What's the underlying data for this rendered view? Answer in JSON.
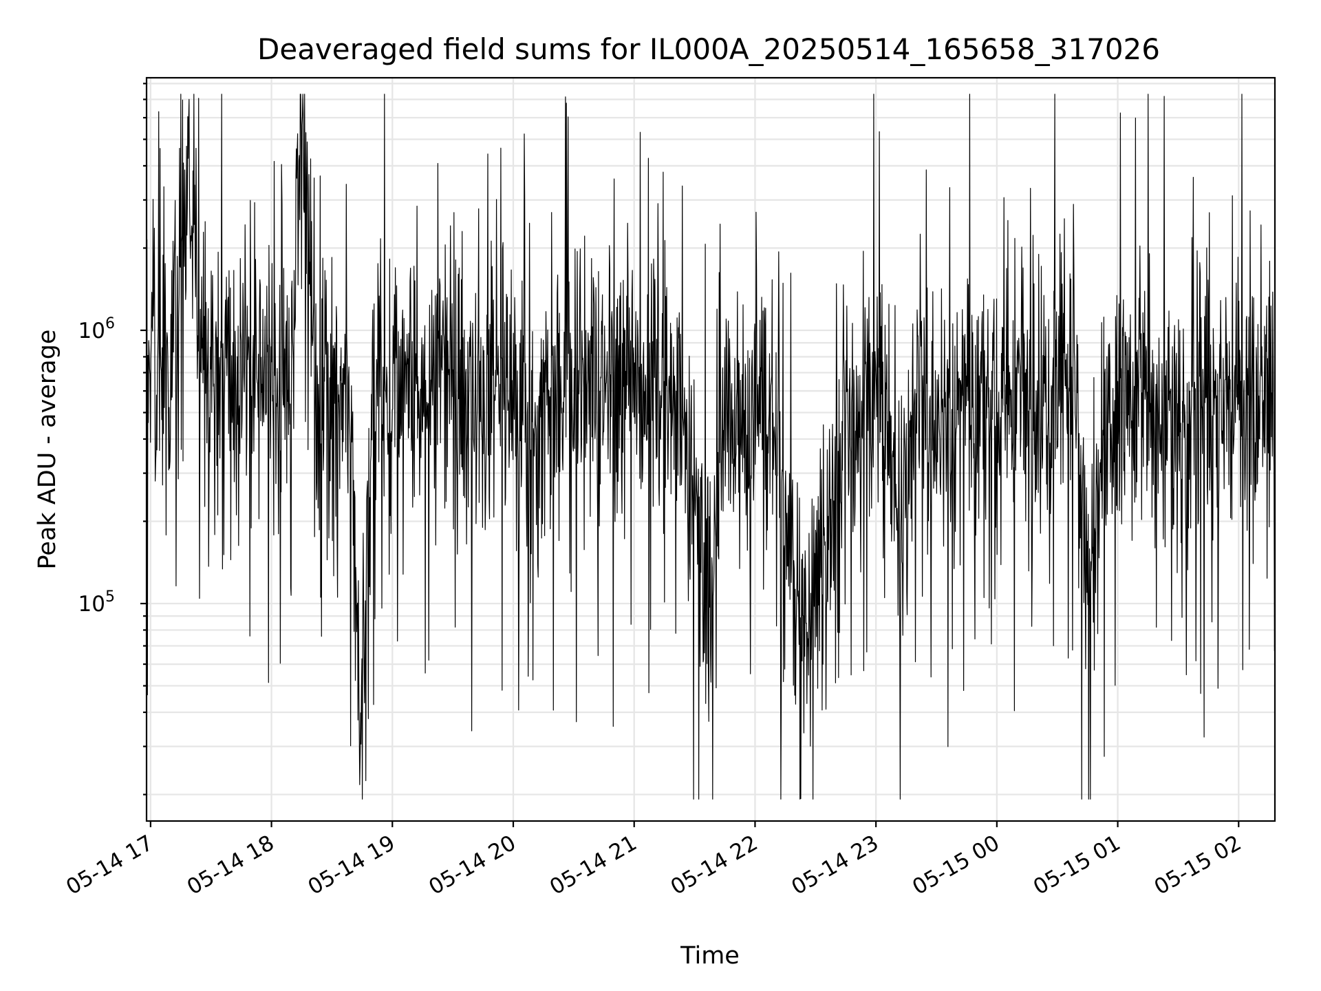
{
  "chart_data": {
    "type": "line",
    "title": "Deaveraged field sums for IL000A_20250514_165658_317026",
    "xlabel": "Time",
    "ylabel": "Peak ADU - average",
    "yscale": "log",
    "xlim": [
      "2025-05-14 16:58",
      "2025-05-15 02:18"
    ],
    "ylim": [
      16000,
      8400000
    ],
    "x_ticks": [
      "05-14 17",
      "05-14 18",
      "05-14 19",
      "05-14 20",
      "05-14 21",
      "05-14 22",
      "05-14 23",
      "05-15 00",
      "05-15 01",
      "05-15 02"
    ],
    "y_ticks": [
      "10^5",
      "10^6"
    ],
    "grid": true,
    "line_color": "#000000",
    "series": [
      {
        "values_description_note": "",
        "x_start": "2025-05-14 16:58",
        "x_end": "2025-05-15 02:18",
        "x": [
          "2025-05-14 16:58",
          "2025-05-14 17:05",
          "2025-05-14 17:12",
          "2025-05-14 17:18",
          "2025-05-14 17:25",
          "2025-05-14 17:32",
          "2025-05-14 17:40",
          "2025-05-14 17:50",
          "2025-05-14 18:00",
          "2025-05-14 18:10",
          "2025-05-14 18:15",
          "2025-05-14 18:22",
          "2025-05-14 18:30",
          "2025-05-14 18:40",
          "2025-05-14 18:44",
          "2025-05-14 18:50",
          "2025-05-14 19:00",
          "2025-05-14 19:10",
          "2025-05-14 19:20",
          "2025-05-14 19:30",
          "2025-05-14 19:40",
          "2025-05-14 19:50",
          "2025-05-14 19:58",
          "2025-05-14 20:05",
          "2025-05-14 20:10",
          "2025-05-14 20:20",
          "2025-05-14 20:30",
          "2025-05-14 20:40",
          "2025-05-14 20:48",
          "2025-05-14 20:55",
          "2025-05-14 21:05",
          "2025-05-14 21:15",
          "2025-05-14 21:22",
          "2025-05-14 21:30",
          "2025-05-14 21:38",
          "2025-05-14 21:45",
          "2025-05-14 21:55",
          "2025-05-14 22:05",
          "2025-05-14 22:12",
          "2025-05-14 22:20",
          "2025-05-14 22:28",
          "2025-05-14 22:35",
          "2025-05-14 22:45",
          "2025-05-14 22:55",
          "2025-05-14 23:05",
          "2025-05-14 23:12",
          "2025-05-14 23:20",
          "2025-05-14 23:30",
          "2025-05-14 23:40",
          "2025-05-14 23:50",
          "2025-05-15 00:00",
          "2025-05-15 00:10",
          "2025-05-15 00:20",
          "2025-05-15 00:30",
          "2025-05-15 00:38",
          "2025-05-15 00:45",
          "2025-05-15 00:55",
          "2025-05-15 01:05",
          "2025-05-15 01:15",
          "2025-05-15 01:25",
          "2025-05-15 01:35",
          "2025-05-15 01:45",
          "2025-05-15 01:55",
          "2025-05-15 02:05",
          "2025-05-15 02:15"
        ],
        "values": [
          650000,
          700000,
          850000,
          3000000,
          900000,
          800000,
          700000,
          650000,
          600000,
          700000,
          7000000,
          650000,
          600000,
          450000,
          33000,
          600000,
          550000,
          600000,
          700000,
          650000,
          600000,
          550000,
          500000,
          550000,
          400000,
          600000,
          700000,
          650000,
          600000,
          700000,
          750000,
          650000,
          550000,
          300000,
          120000,
          500000,
          450000,
          600000,
          300000,
          100000,
          90000,
          150000,
          450000,
          650000,
          600000,
          150000,
          550000,
          500000,
          600000,
          550000,
          500000,
          600000,
          450000,
          650000,
          700000,
          120000,
          400000,
          600000,
          550000,
          500000,
          400000,
          550000,
          600000,
          550000,
          650000
        ]
      }
    ]
  }
}
